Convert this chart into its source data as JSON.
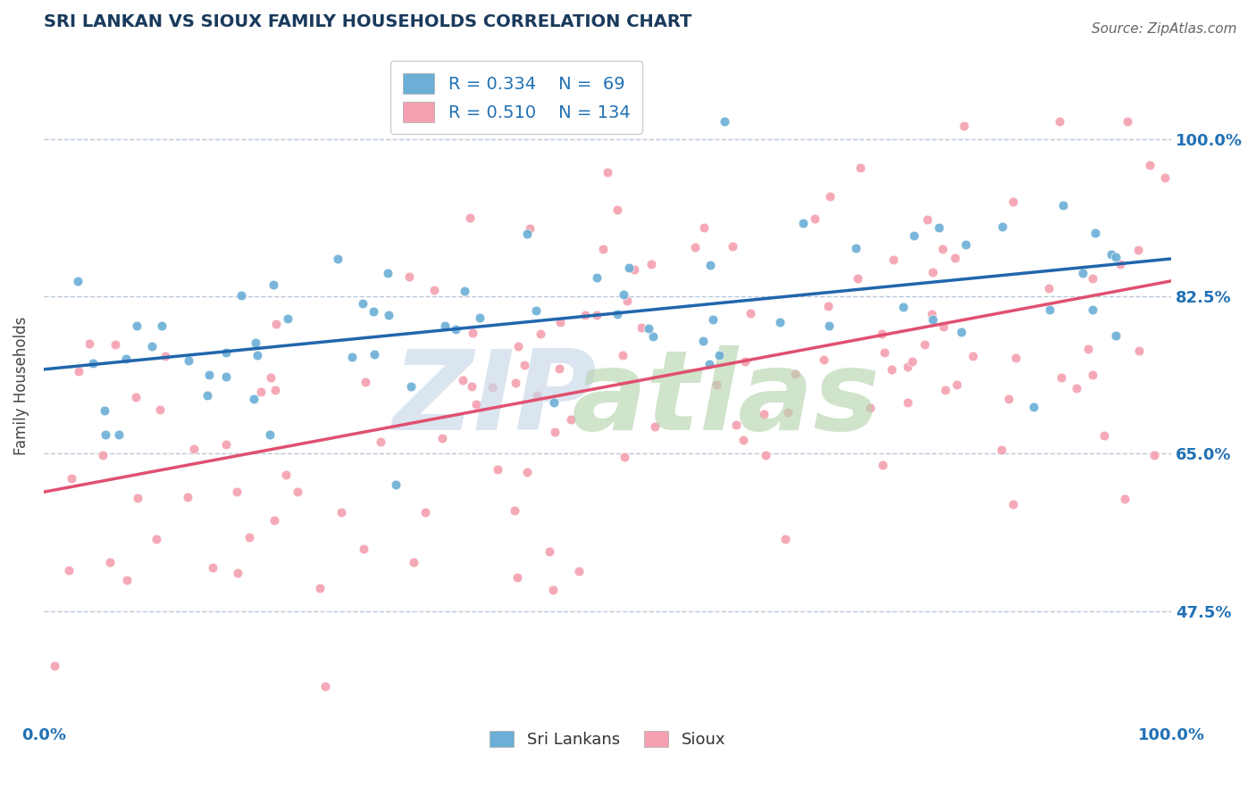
{
  "title": "SRI LANKAN VS SIOUX FAMILY HOUSEHOLDS CORRELATION CHART",
  "source_text": "Source: ZipAtlas.com",
  "ylabel": "Family Households",
  "ytick_labels": [
    "47.5%",
    "65.0%",
    "82.5%",
    "100.0%"
  ],
  "ytick_values": [
    0.475,
    0.65,
    0.825,
    1.0
  ],
  "xmin": 0.0,
  "xmax": 1.0,
  "ymin": 0.35,
  "ymax": 1.1,
  "sri_lankan_color": "#6baed6",
  "sioux_color": "#f4a0b0",
  "sri_lankan_line_color": "#2166ac",
  "sioux_line_color": "#e05070",
  "sri_lankan_R": 0.334,
  "sioux_R": 0.51,
  "sri_lankan_N": 69,
  "sioux_N": 134,
  "legend_label1": "Sri Lankans",
  "legend_label2": "Sioux",
  "background_color": "#ffffff",
  "grid_color": "#b8c8d8",
  "title_color": "#1a3a5c",
  "axis_label_color": "#2171b5",
  "watermark_zip_color": "#c8d8e8",
  "watermark_atlas_color": "#b8d4b0"
}
